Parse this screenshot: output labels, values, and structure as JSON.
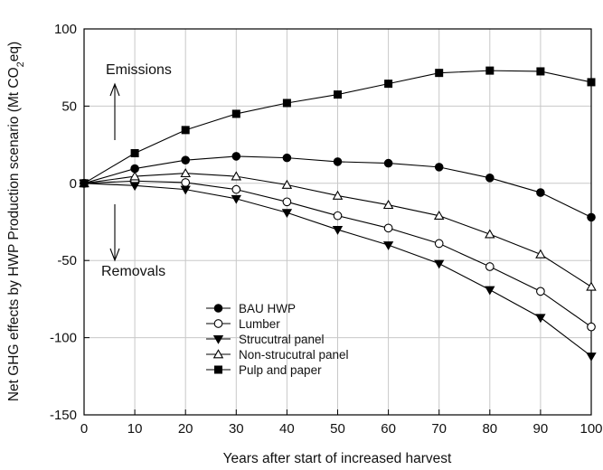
{
  "chart_data": {
    "type": "line",
    "title": "",
    "xlabel": "Years after start of increased harvest",
    "ylabel_parts": [
      "Net GHG effects by HWP Production scenario (Mt CO",
      "2",
      "eq)"
    ],
    "xlim": [
      0,
      100
    ],
    "ylim": [
      -150,
      100
    ],
    "grid": true,
    "x_ticks": [
      0,
      10,
      20,
      30,
      40,
      50,
      60,
      70,
      80,
      90,
      100
    ],
    "y_ticks": [
      -150,
      -100,
      -50,
      0,
      50,
      100
    ],
    "legend_position": "lower-left",
    "x": [
      0,
      10,
      20,
      30,
      40,
      50,
      60,
      70,
      80,
      90,
      100
    ],
    "series": [
      {
        "name": "BAU HWP",
        "marker": "filled-circle",
        "values": [
          0,
          9.5,
          15,
          17.5,
          16.5,
          14,
          13,
          10.5,
          3.5,
          -6,
          -22
        ]
      },
      {
        "name": "Lumber",
        "marker": "open-circle",
        "values": [
          0,
          1.5,
          0.5,
          -4,
          -12,
          -21,
          -29,
          -39,
          -54,
          -70,
          -93
        ]
      },
      {
        "name": "Strucutral panel",
        "marker": "filled-triangle-down",
        "values": [
          0,
          -1.5,
          -4,
          -10,
          -19,
          -30,
          -40,
          -52,
          -69,
          -87,
          -112
        ]
      },
      {
        "name": "Non-strucutral panel",
        "marker": "open-triangle-up",
        "values": [
          0,
          4.5,
          6.5,
          4.5,
          -1,
          -8,
          -14,
          -21,
          -33,
          -46,
          -67
        ]
      },
      {
        "name": "Pulp and paper",
        "marker": "filled-square",
        "values": [
          0,
          19.5,
          34.5,
          45,
          52,
          57.5,
          64.5,
          71.5,
          73,
          72.5,
          65.5
        ]
      }
    ],
    "annotations": [
      {
        "text": "Emissions",
        "arrow": "up"
      },
      {
        "text": "Removals",
        "arrow": "down"
      }
    ]
  }
}
